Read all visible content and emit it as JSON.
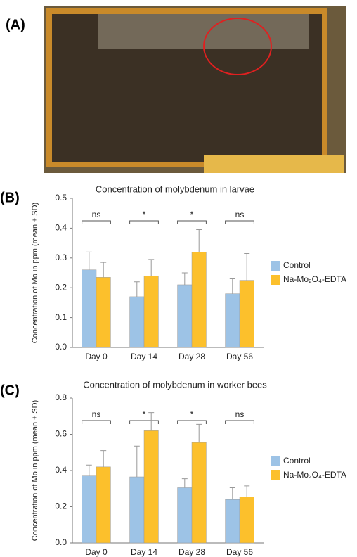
{
  "figure": {
    "panel_labels": [
      "(A)",
      "(B)",
      "(C)"
    ]
  },
  "chart_data": [
    {
      "type": "bar",
      "title": "Concentration of molybdenum in larvae",
      "y_label": "Concentration of Mo in ppm (mean ± SD)",
      "categories": [
        "Day 0",
        "Day 14",
        "Day 28",
        "Day 56"
      ],
      "annotations": [
        "ns",
        "*",
        "*",
        "ns"
      ],
      "series": [
        {
          "name": "Control",
          "color": "#9dc3e6",
          "values": [
            0.26,
            0.17,
            0.21,
            0.18
          ],
          "errors": [
            0.06,
            0.05,
            0.04,
            0.05
          ]
        },
        {
          "name": "Na-Mo₂O₄-EDTA",
          "color": "#fcc02c",
          "values": [
            0.235,
            0.24,
            0.32,
            0.225
          ],
          "errors": [
            0.05,
            0.055,
            0.075,
            0.09
          ]
        }
      ],
      "ylim": [
        0,
        0.5
      ],
      "yticks": [
        {
          "value": 0,
          "label": "0.0"
        },
        0.1,
        0.2,
        0.3,
        0.4,
        0.5
      ],
      "legend": "right"
    },
    {
      "type": "bar",
      "title": "Concentration of molybdenum in worker bees",
      "y_label": "Concentration of Mo in ppm (mean ± SD)",
      "categories": [
        "Day 0",
        "Day 14",
        "Day 28",
        "Day 56"
      ],
      "annotations": [
        "ns",
        "*",
        "*",
        "ns"
      ],
      "series": [
        {
          "name": "Control",
          "color": "#9dc3e6",
          "values": [
            0.37,
            0.365,
            0.305,
            0.24
          ],
          "errors": [
            0.06,
            0.17,
            0.05,
            0.065
          ]
        },
        {
          "name": "Na-Mo₂O₄-EDTA",
          "color": "#fcc02c",
          "values": [
            0.42,
            0.62,
            0.555,
            0.255
          ],
          "errors": [
            0.09,
            0.1,
            0.1,
            0.06
          ]
        }
      ],
      "ylim": [
        0,
        0.8
      ],
      "yticks": [
        {
          "value": 0,
          "label": "0.0"
        },
        0.2,
        0.4,
        0.6,
        0.8
      ],
      "legend": "right"
    }
  ]
}
